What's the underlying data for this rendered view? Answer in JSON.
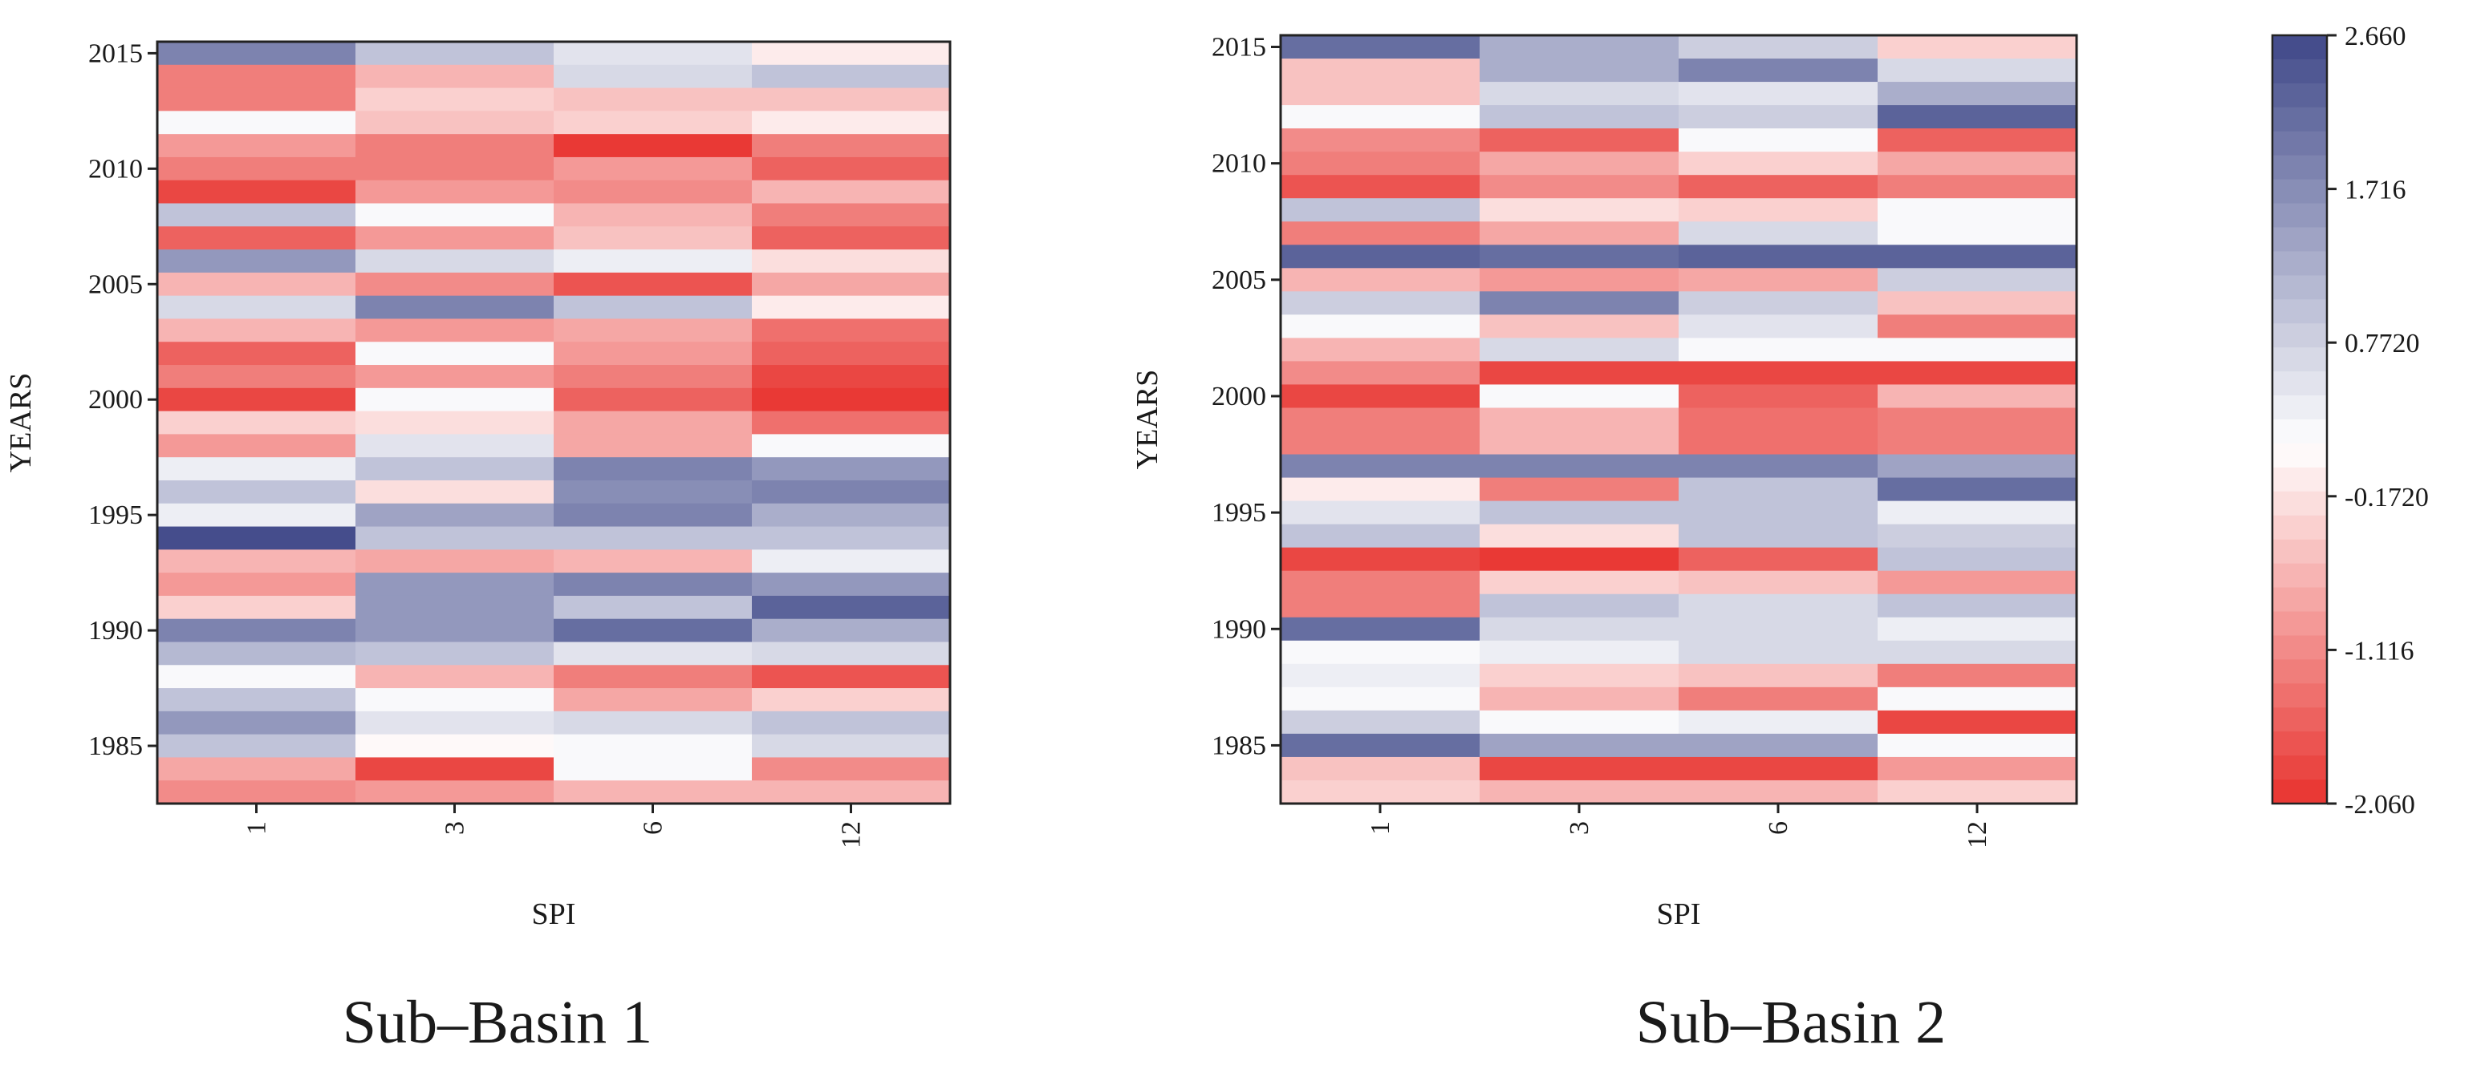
{
  "chart_data": [
    {
      "type": "heatmap",
      "title": "Sub–Basin 1",
      "xlabel": "SPI",
      "ylabel": "YEARS",
      "x_categories": [
        "1",
        "3",
        "6",
        "12"
      ],
      "y_range": [
        1983,
        2015
      ],
      "y_ticks": [
        "1985",
        "1990",
        "1995",
        "2000",
        "2005",
        "2010",
        "2015"
      ],
      "rows": [
        {
          "year": 2015,
          "values": [
            1.9,
            1.0,
            0.5,
            -0.1
          ]
        },
        {
          "year": 2014,
          "values": [
            -1.2,
            -0.6,
            0.6,
            1.0
          ]
        },
        {
          "year": 2013,
          "values": [
            -1.2,
            -0.4,
            -0.5,
            -0.5
          ]
        },
        {
          "year": 2012,
          "values": [
            0.3,
            -0.5,
            -0.3,
            -0.1
          ]
        },
        {
          "year": 2011,
          "values": [
            -0.9,
            -1.2,
            -2.0,
            -1.3
          ]
        },
        {
          "year": 2010,
          "values": [
            -1.3,
            -1.2,
            -1.0,
            -1.5
          ]
        },
        {
          "year": 2009,
          "values": [
            -1.8,
            -1.0,
            -1.1,
            -0.7
          ]
        },
        {
          "year": 2008,
          "values": [
            1.0,
            0.2,
            -0.6,
            -1.2
          ]
        },
        {
          "year": 2007,
          "values": [
            -1.6,
            -0.9,
            -0.5,
            -1.5
          ]
        },
        {
          "year": 2006,
          "values": [
            1.6,
            0.6,
            0.4,
            -0.2
          ]
        },
        {
          "year": 2005,
          "values": [
            -0.6,
            -1.1,
            -1.7,
            -0.8
          ]
        },
        {
          "year": 2004,
          "values": [
            0.7,
            1.9,
            1.0,
            -0.1
          ]
        },
        {
          "year": 2003,
          "values": [
            -0.7,
            -0.9,
            -0.8,
            -1.4
          ]
        },
        {
          "year": 2002,
          "values": [
            -1.5,
            0.3,
            -1.0,
            -1.5
          ]
        },
        {
          "year": 2001,
          "values": [
            -1.3,
            -0.9,
            -1.3,
            -1.9
          ]
        },
        {
          "year": 2000,
          "values": [
            -1.9,
            0.3,
            -1.5,
            -2.0
          ]
        },
        {
          "year": 1999,
          "values": [
            -0.3,
            -0.2,
            -0.8,
            -1.4
          ]
        },
        {
          "year": 1998,
          "values": [
            -1.0,
            0.5,
            -0.8,
            0.3
          ]
        },
        {
          "year": 1997,
          "values": [
            0.4,
            1.0,
            1.9,
            1.5
          ]
        },
        {
          "year": 1996,
          "values": [
            0.9,
            -0.2,
            1.7,
            1.9
          ]
        },
        {
          "year": 1995,
          "values": [
            0.4,
            1.4,
            1.8,
            1.3
          ]
        },
        {
          "year": 1994,
          "values": [
            2.6,
            1.0,
            1.0,
            1.0
          ]
        },
        {
          "year": 1993,
          "values": [
            -0.6,
            -0.8,
            -0.6,
            0.4
          ]
        },
        {
          "year": 1992,
          "values": [
            -1.0,
            1.6,
            1.8,
            1.5
          ]
        },
        {
          "year": 1991,
          "values": [
            -0.4,
            1.6,
            1.0,
            2.3
          ]
        },
        {
          "year": 1990,
          "values": [
            1.8,
            1.6,
            2.2,
            1.3
          ]
        },
        {
          "year": 1989,
          "values": [
            1.1,
            1.0,
            0.5,
            0.7
          ]
        },
        {
          "year": 1988,
          "values": [
            0.3,
            -0.6,
            -1.3,
            -1.7
          ]
        },
        {
          "year": 1987,
          "values": [
            0.9,
            0.3,
            -0.8,
            -0.3
          ]
        },
        {
          "year": 1986,
          "values": [
            1.6,
            0.5,
            0.6,
            0.9
          ]
        },
        {
          "year": 1985,
          "values": [
            1.0,
            0.1,
            0.3,
            0.6
          ]
        },
        {
          "year": 1984,
          "values": [
            -0.8,
            -1.9,
            0.3,
            -1.1
          ]
        },
        {
          "year": 1983,
          "values": [
            -1.1,
            -0.9,
            -0.7,
            -0.6
          ]
        }
      ]
    },
    {
      "type": "heatmap",
      "title": "Sub–Basin 2",
      "xlabel": "SPI",
      "ylabel": "YEARS",
      "x_categories": [
        "1",
        "3",
        "6",
        "12"
      ],
      "y_range": [
        1983,
        2015
      ],
      "y_ticks": [
        "1985",
        "1990",
        "1995",
        "2000",
        "2005",
        "2010",
        "2015"
      ],
      "rows": [
        {
          "year": 2015,
          "values": [
            2.2,
            1.3,
            0.8,
            -0.4
          ]
        },
        {
          "year": 2014,
          "values": [
            -0.5,
            1.3,
            1.8,
            0.7
          ]
        },
        {
          "year": 2013,
          "values": [
            -0.5,
            0.6,
            0.5,
            1.3
          ]
        },
        {
          "year": 2012,
          "values": [
            0.3,
            1.0,
            0.8,
            2.3
          ]
        },
        {
          "year": 2011,
          "values": [
            -1.1,
            -1.6,
            0.3,
            -1.6
          ]
        },
        {
          "year": 2010,
          "values": [
            -1.2,
            -0.8,
            -0.3,
            -0.8
          ]
        },
        {
          "year": 2009,
          "values": [
            -1.7,
            -1.1,
            -1.5,
            -1.2
          ]
        },
        {
          "year": 2008,
          "values": [
            1.0,
            -0.2,
            -0.4,
            0.3
          ]
        },
        {
          "year": 2007,
          "values": [
            -1.3,
            -0.8,
            0.6,
            0.3
          ]
        },
        {
          "year": 2006,
          "values": [
            2.3,
            2.2,
            2.3,
            2.3
          ]
        },
        {
          "year": 2005,
          "values": [
            -0.7,
            -1.0,
            -0.8,
            0.8
          ]
        },
        {
          "year": 2004,
          "values": [
            0.8,
            1.9,
            0.8,
            -0.5
          ]
        },
        {
          "year": 2003,
          "values": [
            0.3,
            -0.5,
            0.5,
            -1.3
          ]
        },
        {
          "year": 2002,
          "values": [
            -0.6,
            0.7,
            0.3,
            0.3
          ]
        },
        {
          "year": 2001,
          "values": [
            -1.1,
            -1.9,
            -1.8,
            -1.9
          ]
        },
        {
          "year": 2000,
          "values": [
            -1.8,
            0.3,
            -1.5,
            -0.6
          ]
        },
        {
          "year": 1999,
          "values": [
            -1.2,
            -0.6,
            -1.4,
            -1.2
          ]
        },
        {
          "year": 1998,
          "values": [
            -1.2,
            -0.7,
            -1.4,
            -1.2
          ]
        },
        {
          "year": 1997,
          "values": [
            1.9,
            1.9,
            1.9,
            1.4
          ]
        },
        {
          "year": 1996,
          "values": [
            -0.1,
            -1.3,
            1.0,
            2.1
          ]
        },
        {
          "year": 1995,
          "values": [
            0.5,
            1.0,
            1.0,
            0.4
          ]
        },
        {
          "year": 1994,
          "values": [
            1.0,
            -0.2,
            1.0,
            0.8
          ]
        },
        {
          "year": 1993,
          "values": [
            -1.9,
            -2.0,
            -1.6,
            1.0
          ]
        },
        {
          "year": 1992,
          "values": [
            -1.2,
            -0.3,
            -0.5,
            -1.0
          ]
        },
        {
          "year": 1991,
          "values": [
            -1.2,
            1.0,
            0.6,
            0.9
          ]
        },
        {
          "year": 1990,
          "values": [
            2.2,
            0.6,
            0.6,
            0.4
          ]
        },
        {
          "year": 1989,
          "values": [
            0.2,
            0.4,
            0.6,
            0.6
          ]
        },
        {
          "year": 1988,
          "values": [
            0.4,
            -0.3,
            -0.5,
            -1.2
          ]
        },
        {
          "year": 1987,
          "values": [
            0.2,
            -0.6,
            -1.2,
            0.3
          ]
        },
        {
          "year": 1986,
          "values": [
            0.8,
            0.2,
            0.4,
            -1.9
          ]
        },
        {
          "year": 1985,
          "values": [
            2.1,
            1.4,
            1.4,
            0.3
          ]
        },
        {
          "year": 1984,
          "values": [
            -0.5,
            -1.8,
            -1.9,
            -1.0
          ]
        },
        {
          "year": 1983,
          "values": [
            -0.4,
            -0.6,
            -0.6,
            -0.4
          ]
        }
      ]
    }
  ],
  "colorbar": {
    "min": -2.06,
    "max": 2.66,
    "tick_labels": [
      "2.660",
      "1.716",
      "0.7720",
      "-0.1720",
      "-1.116",
      "-2.060"
    ],
    "tick_values": [
      2.66,
      1.716,
      0.772,
      -0.172,
      -1.116,
      -2.06
    ],
    "levels": 32
  },
  "colors": {
    "low": "#e8322e",
    "mid": "#ffffff",
    "high": "#3f4889"
  }
}
